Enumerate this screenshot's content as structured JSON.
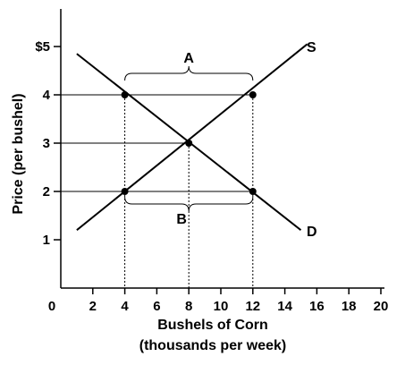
{
  "chart_data": {
    "type": "line",
    "title": "",
    "xlabel": "Bushels of Corn",
    "xlabel_line2": "(thousands per week)",
    "ylabel": "Price (per bushel)",
    "xlim": [
      0,
      20
    ],
    "ylim": [
      0,
      5
    ],
    "x_ticks": [
      0,
      2,
      4,
      6,
      8,
      10,
      12,
      14,
      16,
      18,
      20
    ],
    "x_tick_labels": [
      "0",
      "2",
      "4",
      "6",
      "8",
      "10",
      "12",
      "14",
      "16",
      "18",
      "20"
    ],
    "y_ticks": [
      1,
      2,
      3,
      4,
      5
    ],
    "y_tick_labels": [
      "1",
      "2",
      "3",
      "4",
      "$5"
    ],
    "grid": false,
    "series": [
      {
        "name": "S",
        "x": [
          1,
          15.4
        ],
        "y": [
          1.2,
          5.05
        ]
      },
      {
        "name": "D",
        "x": [
          1,
          15
        ],
        "y": [
          4.85,
          1.2
        ]
      }
    ],
    "points": [
      {
        "x": 4,
        "y": 4
      },
      {
        "x": 12,
        "y": 4
      },
      {
        "x": 8,
        "y": 3
      },
      {
        "x": 4,
        "y": 2
      },
      {
        "x": 12,
        "y": 2
      }
    ],
    "reference_lines": {
      "horizontal": [
        {
          "y": 4,
          "x_end": 12
        },
        {
          "y": 3,
          "x_end": 8
        },
        {
          "y": 2,
          "x_end": 12
        }
      ],
      "vertical_dashed": [
        {
          "x": 4,
          "y_end": 4
        },
        {
          "x": 8,
          "y_end": 3
        },
        {
          "x": 12,
          "y_end": 4
        }
      ]
    },
    "braces": [
      {
        "label": "A",
        "x_from": 4,
        "x_to": 12,
        "level": 4,
        "position": "above"
      },
      {
        "label": "B",
        "x_from": 4,
        "x_to": 12,
        "level": 2,
        "position": "below"
      }
    ]
  }
}
